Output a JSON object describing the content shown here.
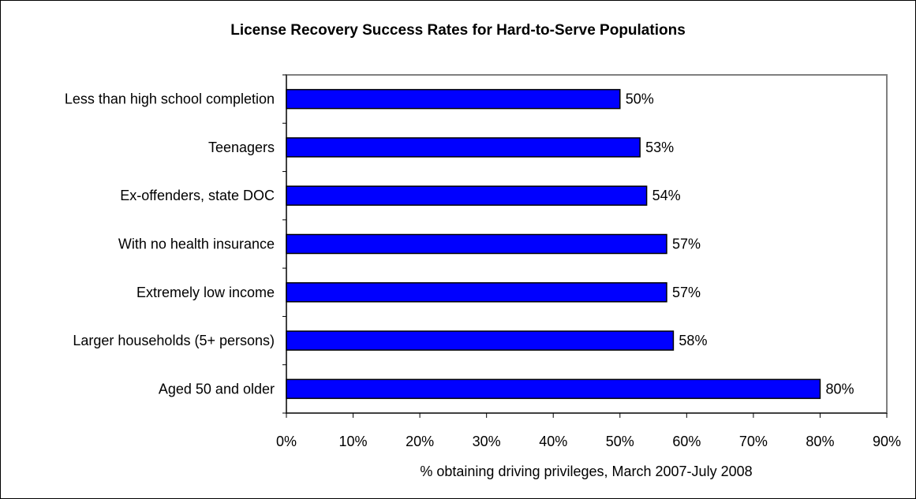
{
  "chart_data": {
    "type": "bar",
    "orientation": "horizontal",
    "title": "License Recovery Success Rates for Hard-to-Serve Populations",
    "xlabel": "% obtaining driving privileges, March 2007-July 2008",
    "ylabel": "",
    "categories": [
      "Less than high school completion",
      "Teenagers",
      "Ex-offenders, state DOC",
      "With no health insurance",
      "Extremely low income",
      "Larger households (5+ persons)",
      "Aged 50 and older"
    ],
    "values": [
      50,
      53,
      54,
      57,
      57,
      58,
      80
    ],
    "data_labels": [
      "50%",
      "53%",
      "54%",
      "57%",
      "57%",
      "58%",
      "80%"
    ],
    "xlim": [
      0,
      90
    ],
    "xticks": [
      0,
      10,
      20,
      30,
      40,
      50,
      60,
      70,
      80,
      90
    ],
    "xtick_labels": [
      "0%",
      "10%",
      "20%",
      "30%",
      "40%",
      "50%",
      "60%",
      "70%",
      "80%",
      "90%"
    ],
    "grid": false,
    "legend": "none",
    "bar_color": "#0000ff",
    "bar_edge_color": "#000000",
    "plot_border_color": "#808080"
  }
}
